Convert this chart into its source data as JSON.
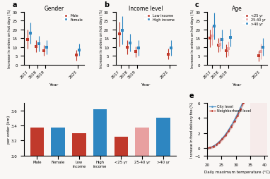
{
  "panel_a": {
    "title": "Gender",
    "label": "a",
    "years": [
      2017,
      2018,
      2019,
      2023
    ],
    "male": {
      "means": [
        14.5,
        10.5,
        8.0,
        5.5
      ],
      "errs": [
        5.5,
        3.5,
        3.0,
        3.0
      ]
    },
    "female": {
      "means": [
        18.0,
        12.0,
        10.0,
        8.5
      ],
      "errs": [
        6.0,
        4.5,
        4.0,
        3.5
      ]
    },
    "legend": [
      "Male",
      "Female"
    ],
    "colors": [
      "#c0392b",
      "#2e86c1"
    ],
    "ylabel": "Increase in orders on hot days (%)",
    "ylim": [
      0,
      30
    ]
  },
  "panel_b": {
    "title": "Income level",
    "label": "b",
    "years": [
      2017,
      2018,
      2019,
      2023
    ],
    "low": {
      "means": [
        17.5,
        10.0,
        7.5,
        6.0
      ],
      "errs": [
        7.0,
        4.0,
        3.0,
        3.0
      ]
    },
    "high": {
      "means": [
        19.5,
        12.5,
        9.5,
        9.5
      ],
      "errs": [
        8.0,
        5.0,
        4.5,
        4.5
      ]
    },
    "legend": [
      "Low income",
      "High income"
    ],
    "colors": [
      "#c0392b",
      "#2e86c1"
    ],
    "ylabel": "Increase in orders on hot days (%)",
    "ylim": [
      0,
      30
    ]
  },
  "panel_c": {
    "title": "Age",
    "label": "c",
    "years": [
      2017,
      2018,
      2019,
      2023
    ],
    "lt25": {
      "means": [
        15.0,
        11.0,
        8.0,
        5.0
      ],
      "errs": [
        5.0,
        4.0,
        3.5,
        3.0
      ]
    },
    "m2540": {
      "means": [
        16.5,
        11.5,
        9.0,
        7.5
      ],
      "errs": [
        5.5,
        4.0,
        4.0,
        4.5
      ]
    },
    "gt40": {
      "means": [
        22.0,
        14.5,
        15.5,
        10.0
      ],
      "errs": [
        7.5,
        5.5,
        5.0,
        5.0
      ]
    },
    "legend": [
      "<25 yr",
      "25-40 yr",
      ">40 yr"
    ],
    "colors": [
      "#c0392b",
      "#e8a0a0",
      "#2e86c1"
    ],
    "ylabel": "Increase in orders on hot days (%)",
    "ylim": [
      0,
      30
    ]
  },
  "panel_d": {
    "categories": [
      "Male",
      "Female",
      "Low\nincome",
      "High\nincome",
      "<25 yr",
      "25-40 yr",
      ">40 yr"
    ],
    "values": [
      3.37,
      3.37,
      3.3,
      3.61,
      3.25,
      3.37,
      3.5
    ],
    "colors": [
      "#c0392b",
      "#2e86c1",
      "#c0392b",
      "#2e86c1",
      "#c0392b",
      "#e8a0a0",
      "#2e86c1"
    ],
    "ylabel": "per order (km)",
    "ylim": [
      3.0,
      3.7
    ],
    "yticks": [
      3.0,
      3.2,
      3.4,
      3.6
    ]
  },
  "panel_e": {
    "label": "e",
    "city_color": "#4d94c8",
    "neighborhood_color": "#c0392b",
    "shade_start": 35,
    "xlabel": "Daily maximum temperature (°C)",
    "ylabel": "Increase in food delivery fee (%)",
    "xlim": [
      20,
      41
    ],
    "ylim": [
      -1,
      6
    ],
    "legend": [
      "City level",
      "Neighborhood level"
    ]
  },
  "background_color": "#f9f7f5"
}
